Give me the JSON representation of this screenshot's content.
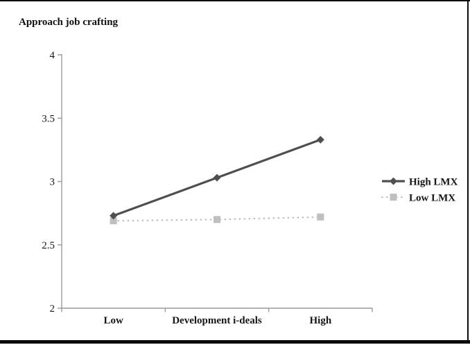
{
  "figure": {
    "top_rule": true,
    "bottom_rule": true,
    "right_rule": true
  },
  "chart_data": {
    "type": "line",
    "title": "Approach job crafting",
    "xlabel": "",
    "ylabel": "Approach job crafting",
    "x_tick_labels": [
      "Low",
      "Development i-deals",
      "High"
    ],
    "categories": [
      "Low",
      "Development i-deals",
      "High"
    ],
    "ylim": [
      2,
      4
    ],
    "yticks": [
      2,
      2.5,
      3,
      3.5,
      4
    ],
    "grid": false,
    "legend_position": "right",
    "axis_color": "#9a9a9a",
    "series": [
      {
        "name": "High LMX",
        "values": [
          2.73,
          3.03,
          3.33
        ],
        "color": "#4f4f4f",
        "line_style": "solid",
        "marker": "diamond"
      },
      {
        "name": "Low LMX",
        "values": [
          2.69,
          2.7,
          2.72
        ],
        "color": "#bfbfbf",
        "line_style": "dotted",
        "marker": "square"
      }
    ]
  }
}
